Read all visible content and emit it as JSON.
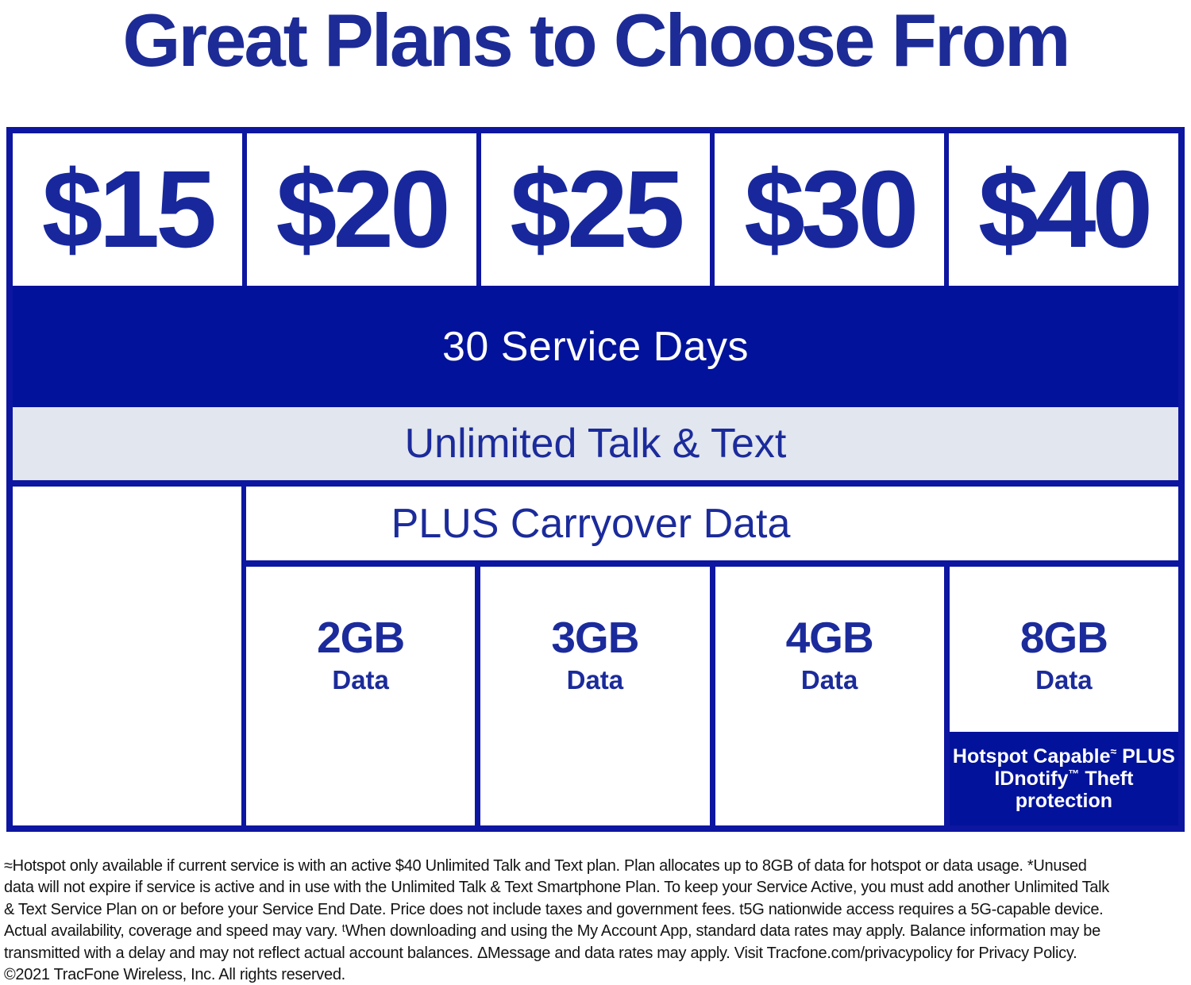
{
  "title": "Great Plans to Choose From",
  "brand_colors": {
    "fill_blue": "#02129b",
    "border_blue": "#0d16a0",
    "text_blue": "#1b2b9b",
    "title_blue": "#1d2b96",
    "light_gray_row": "#e2e6ee"
  },
  "table": {
    "prices": [
      "$15",
      "$20",
      "$25",
      "$30",
      "$40"
    ],
    "service_days": "30 Service Days",
    "talk_text": "Unlimited Talk & Text",
    "carryover": "PLUS Carryover Data",
    "data_cells": [
      {
        "amount": "2GB",
        "label": "Data"
      },
      {
        "amount": "3GB",
        "label": "Data"
      },
      {
        "amount": "4GB",
        "label": "Data"
      },
      {
        "amount": "8GB",
        "label": "Data"
      }
    ],
    "hotspot": {
      "l1a": "Hotspot Capable",
      "l1sup": "≈",
      "l1b": " PLUS",
      "l2a": "IDnotify",
      "l2sup": "™",
      "l2b": " Theft protection"
    }
  },
  "footer": {
    "lines": [
      "≈Hotspot only available if current service is with an active $40 Unlimited Talk and Text plan. Plan allocates up to 8GB of data for hotspot or data usage. *Unused",
      "data will not expire if service is active and in use with the Unlimited Talk & Text Smartphone Plan. To keep your Service Active, you must add another Unlimited Talk",
      "& Text Service Plan on or before your Service End Date. Price does not include taxes and government fees. t5G nationwide access requires a 5G-capable device.",
      "Actual availability, coverage and speed may vary. ᵗWhen downloading and using the My Account App, standard data rates may apply. Balance information may be",
      "transmitted with a delay and may not reflect actual account balances. ΔMessage and data rates may apply. Visit Tracfone.com/privacypolicy for Privacy Policy.",
      "©2021 TracFone Wireless, Inc. All rights reserved."
    ]
  }
}
